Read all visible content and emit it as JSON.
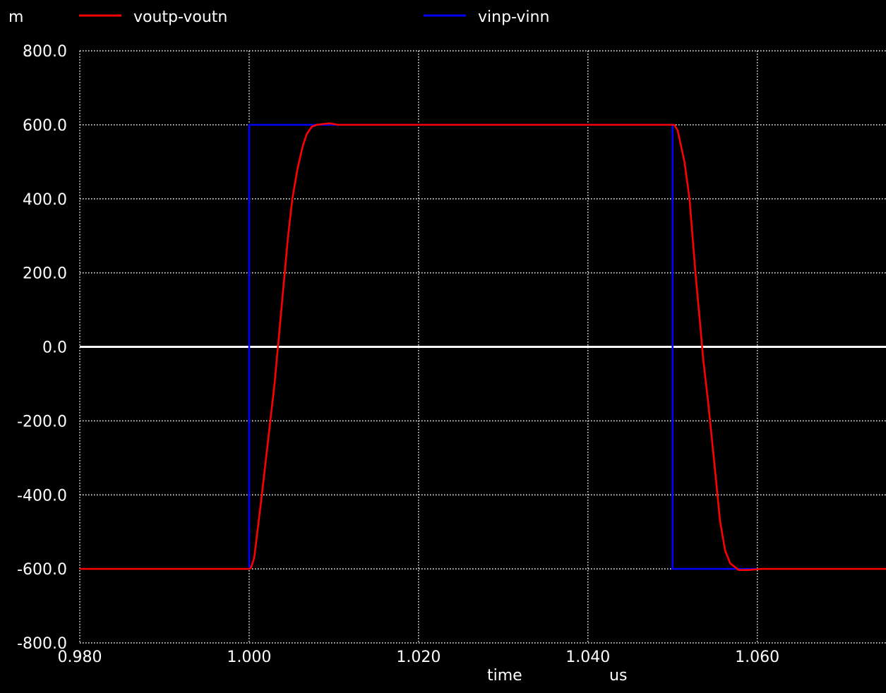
{
  "chart_data": {
    "type": "line",
    "title": "",
    "y_unit_prefix": "m",
    "xlabel": "time",
    "x_unit": "us",
    "xlim": [
      0.98,
      1.0752
    ],
    "ylim": [
      -800,
      800
    ],
    "x_ticks": [
      {
        "value": 0.98,
        "label": "0.980"
      },
      {
        "value": 1.0,
        "label": "1.000"
      },
      {
        "value": 1.02,
        "label": "1.020"
      },
      {
        "value": 1.04,
        "label": "1.040"
      },
      {
        "value": 1.06,
        "label": "1.060"
      }
    ],
    "y_ticks": [
      {
        "value": 800,
        "label": "800.0"
      },
      {
        "value": 600,
        "label": "600.0"
      },
      {
        "value": 400,
        "label": "400.0"
      },
      {
        "value": 200,
        "label": "200.0"
      },
      {
        "value": 0,
        "label": "0.0"
      },
      {
        "value": -200,
        "label": "-200.0"
      },
      {
        "value": -400,
        "label": "-400.0"
      },
      {
        "value": -600,
        "label": "-600.0"
      },
      {
        "value": -800,
        "label": "-800.0"
      }
    ],
    "grid": true,
    "legend_position": "top",
    "series": [
      {
        "name": "voutp-voutn",
        "color": "#ff0000",
        "points": [
          [
            0.98,
            -600
          ],
          [
            1.0,
            -600
          ],
          [
            1.0002,
            -598
          ],
          [
            1.0006,
            -570
          ],
          [
            1.0015,
            -400
          ],
          [
            1.0025,
            -200
          ],
          [
            1.003,
            -100
          ],
          [
            1.0034,
            0
          ],
          [
            1.004,
            150
          ],
          [
            1.0046,
            300
          ],
          [
            1.0051,
            400
          ],
          [
            1.0057,
            480
          ],
          [
            1.0063,
            540
          ],
          [
            1.0068,
            575
          ],
          [
            1.0074,
            595
          ],
          [
            1.008,
            600
          ],
          [
            1.009,
            603
          ],
          [
            1.0095,
            604
          ],
          [
            1.0105,
            600
          ],
          [
            1.0502,
            600
          ],
          [
            1.0506,
            585
          ],
          [
            1.0514,
            500
          ],
          [
            1.052,
            400
          ],
          [
            1.0527,
            200
          ],
          [
            1.0533,
            50
          ],
          [
            1.0536,
            -30
          ],
          [
            1.0542,
            -150
          ],
          [
            1.055,
            -330
          ],
          [
            1.0556,
            -470
          ],
          [
            1.0562,
            -550
          ],
          [
            1.0568,
            -585
          ],
          [
            1.0578,
            -603
          ],
          [
            1.059,
            -603
          ],
          [
            1.0605,
            -600
          ],
          [
            1.0752,
            -600
          ]
        ]
      },
      {
        "name": "vinp-vinn",
        "color": "#0000ff",
        "points": [
          [
            1.0,
            -600
          ],
          [
            1.0,
            600
          ],
          [
            1.05,
            600
          ],
          [
            1.05,
            -600
          ],
          [
            1.06,
            -600
          ]
        ]
      }
    ]
  },
  "colors": {
    "background": "#000000",
    "text": "#ffffff",
    "grid": "#ffffff",
    "zero_line": "#ffffff"
  }
}
